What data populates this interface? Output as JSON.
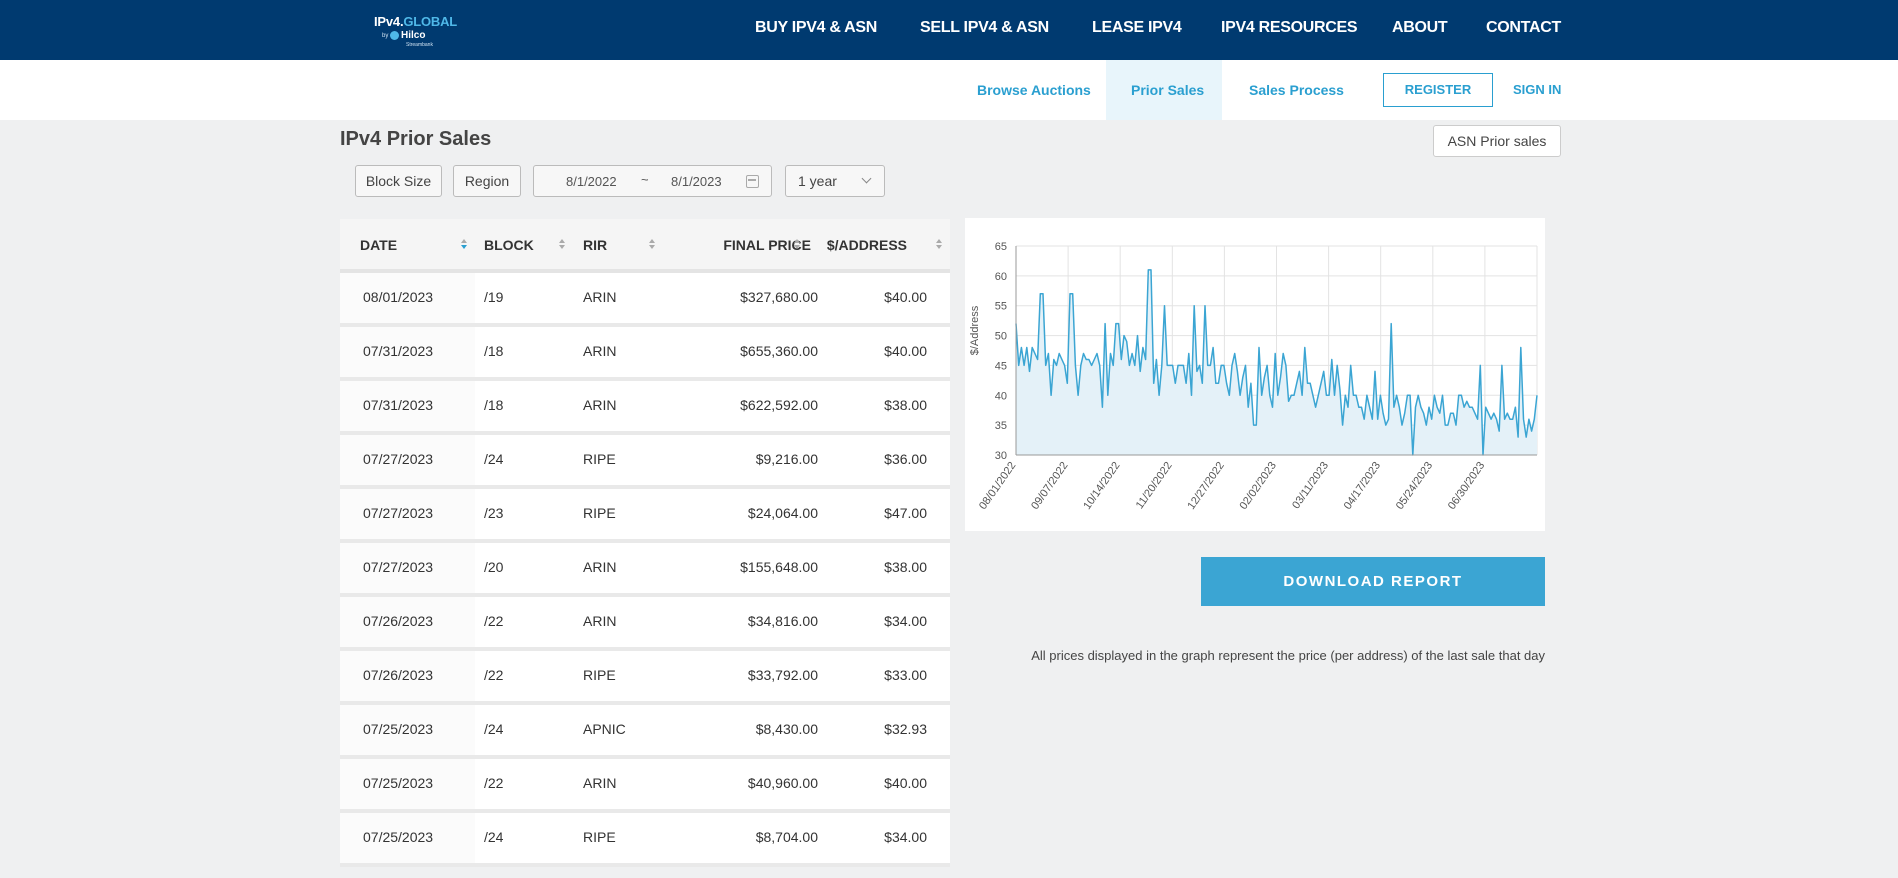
{
  "brand": {
    "logo_main": "IPv4.",
    "logo_accent": "GLOBAL",
    "logo_by": "by",
    "logo_company": "Hilco",
    "logo_sub": "Streambank"
  },
  "nav": {
    "items": [
      "BUY IPV4 & ASN",
      "SELL IPV4 & ASN",
      "LEASE IPV4",
      "IPV4 RESOURCES",
      "ABOUT",
      "CONTACT"
    ]
  },
  "subnav": {
    "items": [
      "Browse Auctions",
      "Prior Sales",
      "Sales Process"
    ],
    "active": "Prior Sales",
    "register": "REGISTER",
    "signin": "SIGN IN"
  },
  "page": {
    "title": "IPv4 Prior Sales",
    "asn_button": "ASN Prior sales"
  },
  "filters": {
    "block_size": "Block Size",
    "region": "Region",
    "date_from": "8/1/2022",
    "date_sep": "~",
    "date_to": "8/1/2023",
    "period": "1 year"
  },
  "table": {
    "headers": [
      "DATE",
      "BLOCK",
      "RIR",
      "FINAL PRICE",
      "$/ADDRESS"
    ],
    "rows": [
      [
        "08/01/2023",
        "/19",
        "ARIN",
        "$327,680.00",
        "$40.00"
      ],
      [
        "07/31/2023",
        "/18",
        "ARIN",
        "$655,360.00",
        "$40.00"
      ],
      [
        "07/31/2023",
        "/18",
        "ARIN",
        "$622,592.00",
        "$38.00"
      ],
      [
        "07/27/2023",
        "/24",
        "RIPE",
        "$9,216.00",
        "$36.00"
      ],
      [
        "07/27/2023",
        "/23",
        "RIPE",
        "$24,064.00",
        "$47.00"
      ],
      [
        "07/27/2023",
        "/20",
        "ARIN",
        "$155,648.00",
        "$38.00"
      ],
      [
        "07/26/2023",
        "/22",
        "ARIN",
        "$34,816.00",
        "$34.00"
      ],
      [
        "07/26/2023",
        "/22",
        "RIPE",
        "$33,792.00",
        "$33.00"
      ],
      [
        "07/25/2023",
        "/24",
        "APNIC",
        "$8,430.00",
        "$32.93"
      ],
      [
        "07/25/2023",
        "/22",
        "ARIN",
        "$40,960.00",
        "$40.00"
      ],
      [
        "07/25/2023",
        "/24",
        "RIPE",
        "$8,704.00",
        "$34.00"
      ]
    ]
  },
  "chart_data": {
    "type": "area",
    "ylabel": "$/Address",
    "ylim": [
      30,
      65
    ],
    "yticks": [
      30,
      35,
      40,
      45,
      50,
      55,
      60,
      65
    ],
    "xticks": [
      "08/01/2022",
      "09/07/2022",
      "10/14/2022",
      "11/20/2022",
      "12/27/2022",
      "02/02/2023",
      "03/11/2023",
      "04/17/2023",
      "05/24/2023",
      "06/30/2023"
    ],
    "grid": true,
    "color": "#3ba5d3",
    "fill_color": "#e4f1f8",
    "values": [
      52,
      45,
      48,
      45,
      48,
      44,
      48,
      47,
      46,
      57,
      57,
      45,
      47,
      40,
      46,
      45,
      47,
      46,
      45,
      42,
      57,
      57,
      45,
      40,
      45,
      47,
      46,
      46,
      45,
      46,
      47,
      45,
      38,
      52,
      40,
      47,
      45,
      52,
      52,
      46,
      50,
      49,
      45,
      47,
      45,
      50,
      44,
      48,
      46,
      61,
      61,
      42,
      46,
      40,
      45,
      55,
      45,
      45,
      45,
      42,
      45,
      45,
      45,
      42,
      47,
      40,
      55,
      44,
      45,
      42,
      55,
      45,
      45,
      48,
      42,
      42,
      45,
      45,
      42,
      40,
      45,
      47,
      44,
      40,
      43,
      45,
      38,
      42,
      35,
      35,
      48,
      40,
      43,
      45,
      40,
      38,
      47,
      40,
      43,
      47,
      45,
      39,
      40,
      40,
      42,
      44,
      40,
      48,
      42,
      42,
      40,
      38,
      40,
      42,
      44,
      40,
      40,
      46,
      40,
      45,
      41,
      35,
      40,
      38,
      45,
      40,
      40,
      38,
      38,
      36,
      40,
      38,
      36,
      44,
      36,
      40,
      37,
      35,
      36,
      52,
      38,
      40,
      38,
      35,
      37,
      40,
      40,
      30,
      38,
      40,
      38,
      37,
      35,
      38,
      36,
      40,
      38,
      37,
      40,
      35,
      35,
      37,
      37,
      35,
      40,
      40,
      38,
      39,
      38,
      38,
      37,
      36,
      45,
      30,
      38,
      37,
      36,
      37,
      36,
      34,
      45,
      36,
      37,
      36,
      36,
      38,
      33,
      48,
      36,
      33,
      36,
      34,
      36,
      40
    ]
  },
  "download": {
    "label": "DOWNLOAD REPORT"
  },
  "note": "All prices displayed in the graph represent the price (per address) of the last sale that day"
}
